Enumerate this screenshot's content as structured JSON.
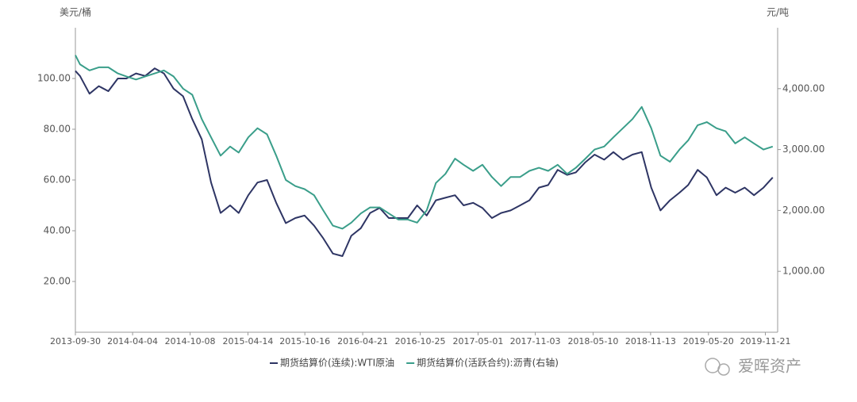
{
  "chart_data": {
    "type": "line",
    "y_label": "美元/桶",
    "y2_label": "元/吨",
    "x": [
      "2013-09-30",
      "2013-10-15",
      "2013-11-15",
      "2013-12-15",
      "2014-01-15",
      "2014-02-15",
      "2014-03-15",
      "2014-04-15",
      "2014-05-15",
      "2014-06-15",
      "2014-07-15",
      "2014-08-15",
      "2014-09-15",
      "2014-10-15",
      "2014-11-15",
      "2014-12-15",
      "2015-01-15",
      "2015-02-15",
      "2015-03-15",
      "2015-04-15",
      "2015-05-15",
      "2015-06-15",
      "2015-07-15",
      "2015-08-15",
      "2015-09-15",
      "2015-10-15",
      "2015-11-15",
      "2015-12-15",
      "2016-01-15",
      "2016-02-15",
      "2016-03-15",
      "2016-04-15",
      "2016-05-15",
      "2016-06-15",
      "2016-07-15",
      "2016-08-15",
      "2016-09-15",
      "2016-10-15",
      "2016-11-15",
      "2016-12-15",
      "2017-01-15",
      "2017-02-15",
      "2017-03-15",
      "2017-04-15",
      "2017-05-15",
      "2017-06-15",
      "2017-07-15",
      "2017-08-15",
      "2017-09-15",
      "2017-10-15",
      "2017-11-15",
      "2017-12-15",
      "2018-01-15",
      "2018-02-15",
      "2018-03-15",
      "2018-04-15",
      "2018-05-15",
      "2018-06-15",
      "2018-07-15",
      "2018-08-15",
      "2018-09-15",
      "2018-10-15",
      "2018-11-15",
      "2018-12-15",
      "2019-01-15",
      "2019-02-15",
      "2019-03-15",
      "2019-04-15",
      "2019-05-15",
      "2019-06-15",
      "2019-07-15",
      "2019-08-15",
      "2019-09-15",
      "2019-10-15",
      "2019-11-15",
      "2019-12-15"
    ],
    "series": [
      {
        "name": "期货结算价(连续):WTI原油",
        "color": "#2e3564",
        "axis": "y",
        "values": [
          103,
          101,
          94,
          97,
          95,
          100,
          100,
          102,
          101,
          104,
          102,
          96,
          93,
          84,
          76,
          59,
          47,
          50,
          47,
          54,
          59,
          60,
          51,
          43,
          45,
          46,
          42,
          37,
          31,
          30,
          38,
          41,
          47,
          49,
          45,
          45,
          45,
          50,
          46,
          52,
          53,
          54,
          50,
          51,
          49,
          45,
          47,
          48,
          50,
          52,
          57,
          58,
          64,
          62,
          63,
          67,
          70,
          68,
          71,
          68,
          70,
          71,
          57,
          48,
          52,
          55,
          58,
          64,
          61,
          54,
          57,
          55,
          57,
          54,
          57,
          61
        ]
      },
      {
        "name": "期货结算价(活跃合约):沥青(右轴)",
        "color": "#3a9e8a",
        "axis": "y2",
        "values": [
          4550,
          4400,
          4300,
          4350,
          4350,
          4250,
          4200,
          4150,
          4200,
          4250,
          4300,
          4200,
          4000,
          3900,
          3500,
          3200,
          2900,
          3050,
          2950,
          3200,
          3350,
          3250,
          2900,
          2500,
          2400,
          2350,
          2250,
          2000,
          1750,
          1700,
          1800,
          1950,
          2050,
          2050,
          1950,
          1850,
          1850,
          1800,
          2000,
          2450,
          2600,
          2850,
          2750,
          2650,
          2750,
          2550,
          2400,
          2550,
          2550,
          2650,
          2700,
          2650,
          2750,
          2600,
          2700,
          2850,
          3000,
          3050,
          3200,
          3350,
          3500,
          3700,
          3350,
          2900,
          2800,
          3000,
          3150,
          3400,
          3450,
          3350,
          3300,
          3100,
          3200,
          3100,
          3000,
          3050
        ]
      }
    ],
    "xlim": [
      "2013-09-30",
      "2019-12-31"
    ],
    "xticks": [
      "2013-09-30",
      "2014-04-04",
      "2014-10-08",
      "2015-04-14",
      "2015-10-16",
      "2016-04-21",
      "2016-10-25",
      "2017-05-01",
      "2017-11-03",
      "2018-05-10",
      "2018-11-13",
      "2019-05-20",
      "2019-11-21"
    ],
    "ylim": [
      0,
      120
    ],
    "yticks": [
      {
        "value": 20,
        "label": "20.00"
      },
      {
        "value": 40,
        "label": "40.00"
      },
      {
        "value": 60,
        "label": "60.00"
      },
      {
        "value": 80,
        "label": "80.00"
      },
      {
        "value": 100,
        "label": "100.00"
      }
    ],
    "y2lim": [
      0,
      5000
    ],
    "y2ticks": [
      {
        "value": 1000,
        "label": "1,000.00"
      },
      {
        "value": 2000,
        "label": "2,000.00"
      },
      {
        "value": 3000,
        "label": "3,000.00"
      },
      {
        "value": 4000,
        "label": "4,000.00"
      }
    ],
    "grid": false,
    "legend": "bottom",
    "watermark": "爱晖资产"
  }
}
